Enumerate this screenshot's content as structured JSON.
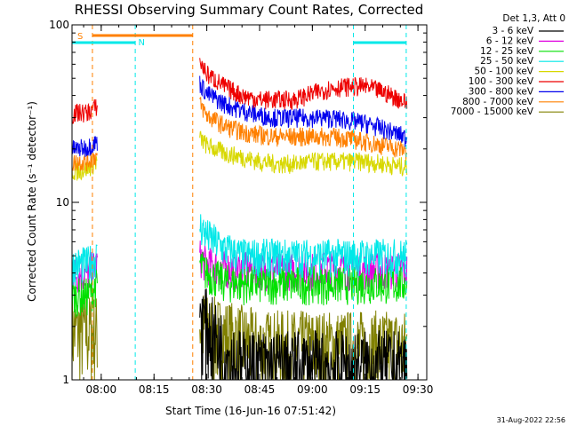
{
  "chart_data": {
    "type": "line",
    "title": "RHESSI Observing Summary Count Rates, Corrected",
    "xlabel": "Start Time (16-Jun-16 07:51:42)",
    "ylabel": "Corrected Count Rate (s⁻¹ detector⁻¹)",
    "yscale": "log",
    "ylim": [
      1,
      100
    ],
    "xlim": [
      "07:51:42",
      "09:32:30"
    ],
    "x_ticks": [
      "08:00",
      "08:15",
      "08:30",
      "08:45",
      "09:00",
      "09:15",
      "09:30"
    ],
    "y_ticks": [
      "1",
      "10",
      "100"
    ],
    "legend_header": "Det 1,3, Att 0",
    "legend_position": "right",
    "timestamp": "31-Aug-2022 22:56",
    "series": [
      {
        "name": "3 - 6 keV",
        "color": "#000000",
        "t": [
          "07:51:42",
          "07:53",
          "07:56",
          "07:59",
          "08:26",
          "08:28",
          "08:30",
          "08:35",
          "08:40",
          "08:45",
          "08:50",
          "08:55",
          "09:00",
          "09:05",
          "09:10",
          "09:15",
          "09:20",
          "09:25",
          "09:27"
        ],
        "values": [
          null,
          null,
          null,
          null,
          null,
          2.0,
          1.7,
          1.2,
          1.0,
          1.0,
          1.0,
          1.0,
          1.0,
          1.0,
          1.0,
          1.0,
          1.0,
          1.0,
          1.0
        ]
      },
      {
        "name": "6 - 12 keV",
        "color": "#e000e0",
        "t": [
          "07:51:42",
          "07:53",
          "07:56",
          "07:59",
          "08:26",
          "08:28",
          "08:30",
          "08:35",
          "08:40",
          "08:45",
          "08:50",
          "08:55",
          "09:00",
          "09:05",
          "09:10",
          "09:15",
          "09:20",
          "09:25",
          "09:27"
        ],
        "values": [
          4.0,
          4.0,
          4.0,
          4.5,
          null,
          5.0,
          4.5,
          4.3,
          4.2,
          4.2,
          4.2,
          4.2,
          4.2,
          4.3,
          4.2,
          4.2,
          4.2,
          4.2,
          4.2
        ]
      },
      {
        "name": "12 - 25 keV",
        "color": "#00e000",
        "t": [
          "07:51:42",
          "07:53",
          "07:56",
          "07:59",
          "08:26",
          "08:28",
          "08:30",
          "08:35",
          "08:40",
          "08:45",
          "08:50",
          "08:55",
          "09:00",
          "09:05",
          "09:10",
          "09:15",
          "09:20",
          "09:25",
          "09:27"
        ],
        "values": [
          3.0,
          3.0,
          3.0,
          3.5,
          null,
          4.5,
          4.0,
          3.6,
          3.5,
          3.5,
          3.5,
          3.5,
          3.5,
          3.5,
          3.5,
          3.5,
          3.5,
          3.5,
          3.5
        ]
      },
      {
        "name": "25 - 50 keV",
        "color": "#00e8e8",
        "t": [
          "07:51:42",
          "07:53",
          "07:56",
          "07:59",
          "08:26",
          "08:28",
          "08:30",
          "08:35",
          "08:40",
          "08:45",
          "08:50",
          "08:55",
          "09:00",
          "09:05",
          "09:10",
          "09:15",
          "09:20",
          "09:25",
          "09:27"
        ],
        "values": [
          4.5,
          4.5,
          4.5,
          5.0,
          null,
          7.5,
          6.5,
          5.5,
          5.0,
          5.0,
          5.0,
          5.0,
          5.0,
          5.0,
          5.0,
          5.0,
          5.0,
          5.0,
          5.0
        ]
      },
      {
        "name": "50 - 100 keV",
        "color": "#d8d800",
        "t": [
          "07:51:42",
          "07:53",
          "07:56",
          "07:59",
          "08:26",
          "08:28",
          "08:30",
          "08:35",
          "08:40",
          "08:45",
          "08:50",
          "08:55",
          "09:00",
          "09:05",
          "09:10",
          "09:15",
          "09:20",
          "09:25",
          "09:27"
        ],
        "values": [
          15,
          15,
          15.5,
          17,
          null,
          23,
          21,
          19,
          18,
          17,
          16.5,
          16.5,
          17,
          17,
          17,
          17,
          16.5,
          16,
          16
        ]
      },
      {
        "name": "100 - 300 keV",
        "color": "#ee0000",
        "t": [
          "07:51:42",
          "07:53",
          "07:56",
          "07:59",
          "08:26",
          "08:28",
          "08:30",
          "08:35",
          "08:40",
          "08:45",
          "08:50",
          "08:55",
          "09:00",
          "09:05",
          "09:10",
          "09:15",
          "09:20",
          "09:25",
          "09:27"
        ],
        "values": [
          31,
          32,
          32,
          35,
          null,
          62,
          53,
          45,
          40,
          38,
          38,
          38,
          41,
          44,
          45,
          45,
          42,
          38,
          36
        ]
      },
      {
        "name": "300 - 800 keV",
        "color": "#0000ee",
        "t": [
          "07:51:42",
          "07:53",
          "07:56",
          "07:59",
          "08:26",
          "08:28",
          "08:30",
          "08:35",
          "08:40",
          "08:45",
          "08:50",
          "08:55",
          "09:00",
          "09:05",
          "09:10",
          "09:15",
          "09:20",
          "09:25",
          "09:27"
        ],
        "values": [
          20,
          20,
          20.5,
          22,
          null,
          47,
          41,
          36,
          33,
          31,
          30,
          30,
          30,
          30,
          29,
          28,
          26,
          24,
          23
        ]
      },
      {
        "name": "800 - 7000 keV",
        "color": "#ff8000",
        "t": [
          "07:51:42",
          "07:53",
          "07:56",
          "07:59",
          "08:26",
          "08:28",
          "08:30",
          "08:35",
          "08:40",
          "08:45",
          "08:50",
          "08:55",
          "09:00",
          "09:05",
          "09:10",
          "09:15",
          "09:20",
          "09:25",
          "09:27"
        ],
        "values": [
          16.5,
          17,
          17,
          18.5,
          null,
          36,
          31,
          27,
          25,
          24,
          23.5,
          23.5,
          23.5,
          23.5,
          23,
          22,
          21,
          20,
          19.5
        ]
      },
      {
        "name": "7000 - 15000 keV",
        "color": "#808000",
        "t": [
          "07:51:42",
          "07:53",
          "07:56",
          "07:59",
          "08:26",
          "08:28",
          "08:30",
          "08:35",
          "08:40",
          "08:45",
          "08:50",
          "08:55",
          "09:00",
          "09:05",
          "09:10",
          "09:15",
          "09:20",
          "09:25",
          "09:27"
        ],
        "values": [
          1.6,
          1.6,
          1.6,
          1.6,
          null,
          1.8,
          1.6,
          1.5,
          1.4,
          1.3,
          1.3,
          1.3,
          1.3,
          1.3,
          1.3,
          1.3,
          1.3,
          1.3,
          1.3
        ]
      }
    ],
    "annotations": [
      {
        "label": "S",
        "color": "#ff8000",
        "x_start": "07:51:42",
        "x_end": "07:55:30"
      },
      {
        "label": "N",
        "color": "#00e8e8",
        "x_start": "08:10:00",
        "x_end": "08:10:00"
      }
    ],
    "bars": [
      {
        "color": "#ff8000",
        "x_start": "07:57:30",
        "x_end": "08:26:00"
      },
      {
        "color": "#00e8e8",
        "x_start": "07:51:42",
        "x_end": "08:09:40"
      },
      {
        "color": "#00e8e8",
        "x_start": "09:11:40",
        "x_end": "09:26:40"
      }
    ],
    "vlines": [
      {
        "color": "#ff8000",
        "x": "07:57:30"
      },
      {
        "color": "#00e8e8",
        "x": "08:09:40"
      },
      {
        "color": "#ff8000",
        "x": "08:26:00"
      },
      {
        "color": "#00e8e8",
        "x": "09:11:40"
      },
      {
        "color": "#00e8e8",
        "x": "09:26:40"
      }
    ],
    "grid": false
  }
}
